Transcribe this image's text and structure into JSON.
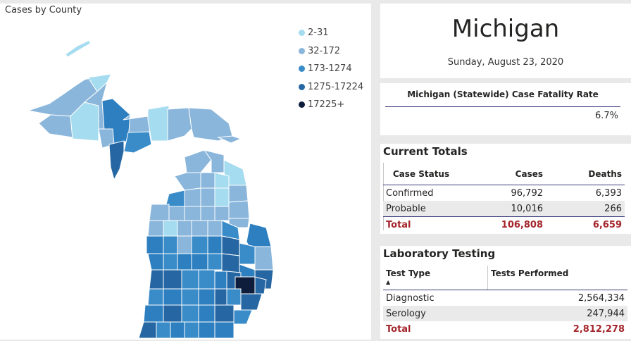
{
  "map": {
    "title": "Cases by County",
    "legend": [
      {
        "label": "2-31",
        "color": "#a6dcef"
      },
      {
        "label": "32-172",
        "color": "#8ab6db"
      },
      {
        "label": "173-1274",
        "color": "#3a8cc9"
      },
      {
        "label": "1275-17224",
        "color": "#2667a3"
      },
      {
        "label": "17225+",
        "color": "#0f1d3d"
      }
    ]
  },
  "state": {
    "name": "Michigan",
    "date": "Sunday, August 23, 2020"
  },
  "cfr": {
    "title": "Michigan (Statewide) Case Fatality Rate",
    "value": "6.7%"
  },
  "totals": {
    "title": "Current Totals",
    "headers": {
      "status": "Case Status",
      "cases": "Cases",
      "deaths": "Deaths"
    },
    "rows": [
      {
        "status": "Confirmed",
        "cases": "96,792",
        "deaths": "6,393"
      },
      {
        "status": "Probable",
        "cases": "10,016",
        "deaths": "266"
      }
    ],
    "total": {
      "status": "Total",
      "cases": "106,808",
      "deaths": "6,659"
    }
  },
  "lab": {
    "title": "Laboratory Testing",
    "headers": {
      "type": "Test Type",
      "performed": "Tests Performed"
    },
    "rows": [
      {
        "type": "Diagnostic",
        "performed": "2,564,334"
      },
      {
        "type": "Serology",
        "performed": "247,944"
      }
    ],
    "total": {
      "type": "Total",
      "performed": "2,812,278"
    }
  }
}
